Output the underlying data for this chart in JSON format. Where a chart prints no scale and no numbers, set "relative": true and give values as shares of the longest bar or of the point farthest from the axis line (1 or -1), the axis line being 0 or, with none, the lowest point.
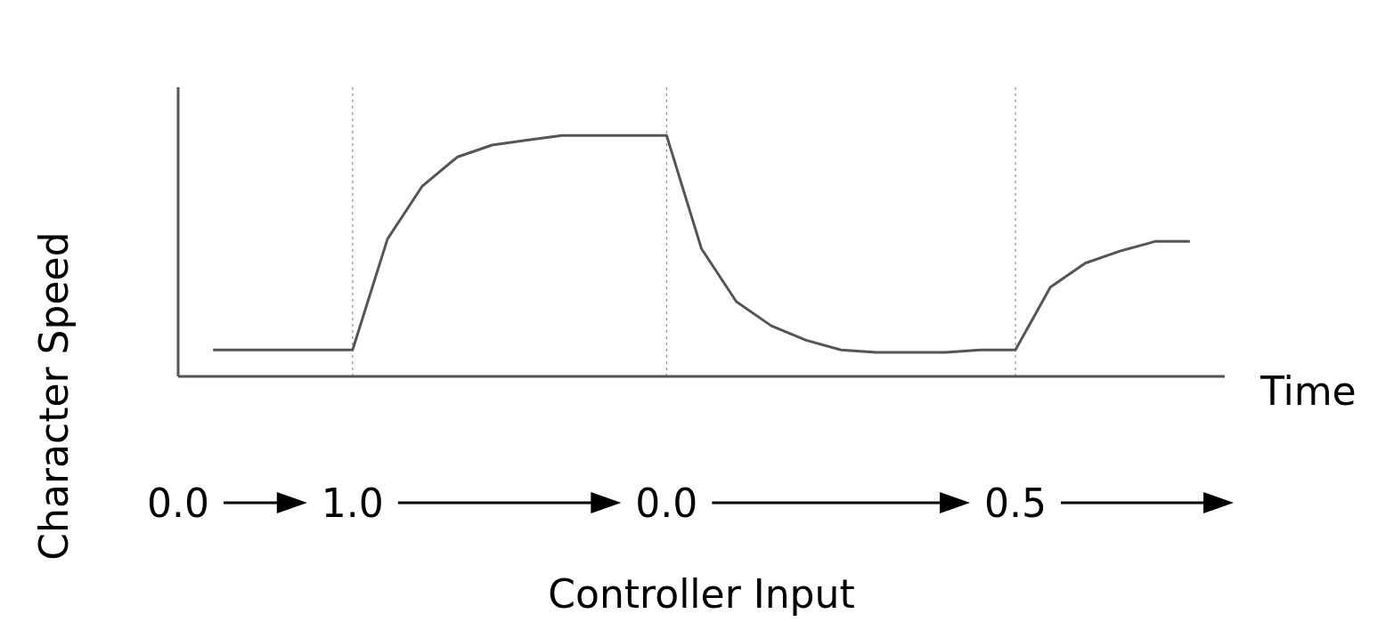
{
  "chart_data": {
    "type": "line",
    "relative": true,
    "xlabel": "Controller Input",
    "ylabel": "Character Speed",
    "annotations": [
      "Time"
    ],
    "categories": [
      "0.0",
      null,
      null,
      null,
      null,
      "1.0",
      null,
      null,
      null,
      null,
      null,
      null,
      null,
      null,
      "0.0",
      null,
      null,
      null,
      null,
      null,
      null,
      null,
      null,
      null,
      "0.5",
      null,
      null,
      null,
      null,
      null,
      null
    ],
    "grid": "x",
    "marker": "none",
    "line_style": "solid",
    "series": [
      {
        "color": "#555555",
        "values": [
          null,
          0.11,
          0.11,
          0.11,
          0.11,
          0.11,
          0.57,
          0.79,
          0.91,
          0.96,
          0.98,
          1.0,
          1.0,
          1.0,
          1.0,
          0.53,
          0.31,
          0.21,
          0.15,
          0.11,
          0.1,
          0.1,
          0.1,
          0.11,
          0.11,
          0.37,
          0.47,
          0.52,
          0.56,
          0.56,
          null
        ]
      }
    ]
  }
}
